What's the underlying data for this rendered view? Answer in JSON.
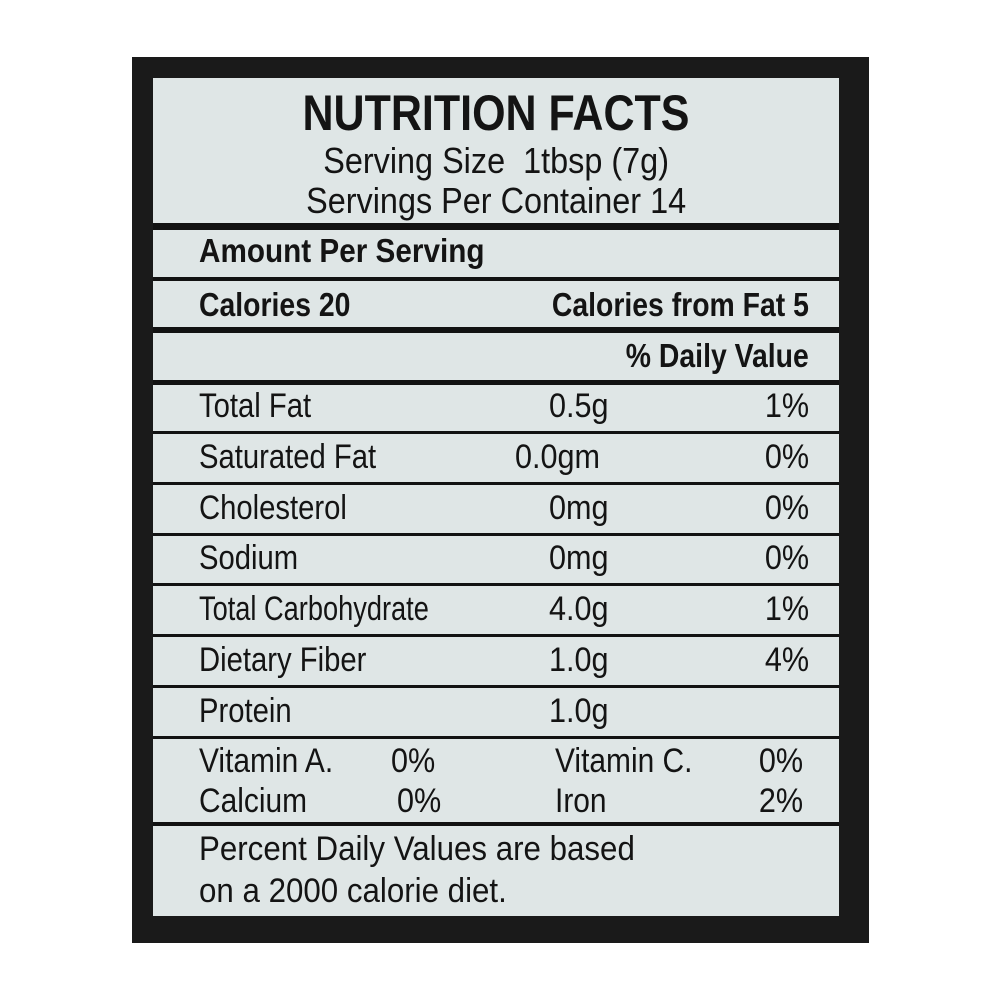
{
  "label": {
    "title": "NUTRITION FACTS",
    "serving_size": "Serving Size  1tbsp (7g)",
    "servings_per_container": "Servings Per Container 14",
    "amount_per_serving": "Amount Per Serving",
    "calories": "Calories 20",
    "calories_from_fat": "Calories from Fat 5",
    "daily_value_header": "% Daily Value",
    "nutrients": [
      {
        "name": "Total Fat",
        "amount": "0.5g",
        "dv": "1%"
      },
      {
        "name": "Saturated Fat",
        "amount": "0.0gm",
        "dv": "0%"
      },
      {
        "name": "Cholesterol",
        "amount": "0mg",
        "dv": "0%"
      },
      {
        "name": "Sodium",
        "amount": "0mg",
        "dv": "0%"
      },
      {
        "name": "Total Carbohydrate",
        "amount": "4.0g",
        "dv": "1%"
      },
      {
        "name": "Dietary Fiber",
        "amount": "1.0g",
        "dv": "4%"
      },
      {
        "name": "Protein",
        "amount": "1.0g",
        "dv": ""
      }
    ],
    "vitamins": [
      {
        "name": "Vitamin A.",
        "dv": "0%"
      },
      {
        "name": "Vitamin C.",
        "dv": "0%"
      },
      {
        "name": "Calcium",
        "dv": "0%"
      },
      {
        "name": "Iron",
        "dv": "2%"
      }
    ],
    "footnote_line1": "Percent Daily Values are based",
    "footnote_line2": "on a 2000 calorie diet."
  },
  "colors": {
    "panel": "#dfe6e6",
    "frame": "#1a1a1a",
    "ink": "#141414"
  }
}
